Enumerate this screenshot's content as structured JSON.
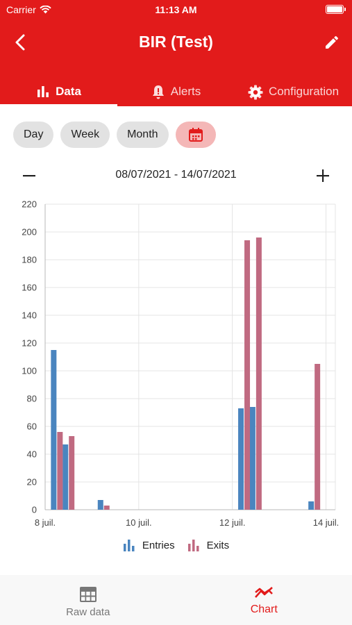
{
  "status_bar": {
    "carrier": "Carrier",
    "time": "11:13 AM"
  },
  "header": {
    "title": "BIR (Test)"
  },
  "tabs": [
    {
      "label": "Data",
      "icon": "bar-chart-icon",
      "active": true
    },
    {
      "label": "Alerts",
      "icon": "bell-alert-icon",
      "active": false
    },
    {
      "label": "Configuration",
      "icon": "gear-icon",
      "active": false
    }
  ],
  "period_buttons": {
    "day": "Day",
    "week": "Week",
    "month": "Month",
    "calendar_icon": "calendar-icon"
  },
  "date_range": {
    "text": "08/07/2021 - 14/07/2021"
  },
  "colors": {
    "header": "#e21b1b",
    "entries": "#4a85bf",
    "exits": "#c06a81",
    "active": "#e21b1b"
  },
  "chart_data": {
    "type": "bar",
    "ylim": [
      0,
      220
    ],
    "y_ticks": [
      0,
      20,
      40,
      60,
      80,
      100,
      120,
      140,
      160,
      180,
      200,
      220
    ],
    "x_ticks": [
      "8 juil.",
      "10 juil.",
      "12 juil.",
      "14 juil."
    ],
    "x_tick_days": [
      0,
      2,
      4,
      6
    ],
    "xlim_days": [
      0,
      6.2
    ],
    "grid": true,
    "series": [
      {
        "name": "Entries",
        "color": "#4a85bf",
        "points": [
          {
            "day": 0.25,
            "value": 115
          },
          {
            "day": 0.5,
            "value": 47
          },
          {
            "day": 1.25,
            "value": 7
          },
          {
            "day": 4.25,
            "value": 73
          },
          {
            "day": 4.5,
            "value": 74
          },
          {
            "day": 5.75,
            "value": 6
          }
        ]
      },
      {
        "name": "Exits",
        "color": "#c06a81",
        "points": [
          {
            "day": 0.25,
            "value": 56
          },
          {
            "day": 0.5,
            "value": 53
          },
          {
            "day": 1.25,
            "value": 3
          },
          {
            "day": 4.25,
            "value": 194
          },
          {
            "day": 4.5,
            "value": 196
          },
          {
            "day": 5.75,
            "value": 105
          }
        ]
      }
    ]
  },
  "legend": {
    "entries": "Entries",
    "exits": "Exits"
  },
  "bottom_nav": [
    {
      "label": "Raw data",
      "icon": "table-icon",
      "active": false
    },
    {
      "label": "Chart",
      "icon": "trend-chart-icon",
      "active": true
    }
  ]
}
